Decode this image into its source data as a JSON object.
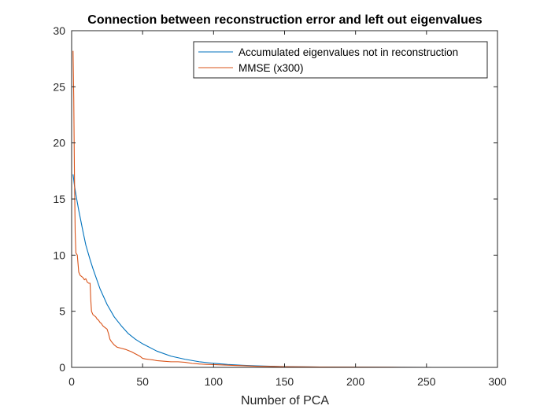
{
  "chart_data": {
    "type": "line",
    "title": "Connection between reconstruction error and left out eigenvalues",
    "xlabel": "Number of PCA",
    "ylabel": "",
    "xlim": [
      0,
      300
    ],
    "ylim": [
      0,
      30
    ],
    "xticks": [
      0,
      50,
      100,
      150,
      200,
      250,
      300
    ],
    "yticks": [
      0,
      5,
      10,
      15,
      20,
      25,
      30
    ],
    "grid": false,
    "box": true,
    "legend_position": "top-right",
    "series": [
      {
        "name": "Accumulated eigenvalues not in reconstruction",
        "color": "#0072BD",
        "points": [
          [
            1,
            17.2
          ],
          [
            2,
            16.2
          ],
          [
            3,
            15.4
          ],
          [
            5,
            14.0
          ],
          [
            8,
            12.1
          ],
          [
            10,
            10.9
          ],
          [
            13,
            9.6
          ],
          [
            15,
            8.8
          ],
          [
            20,
            7.0
          ],
          [
            25,
            5.6
          ],
          [
            30,
            4.5
          ],
          [
            35,
            3.7
          ],
          [
            40,
            3.0
          ],
          [
            45,
            2.5
          ],
          [
            50,
            2.1
          ],
          [
            60,
            1.45
          ],
          [
            70,
            1.0
          ],
          [
            80,
            0.72
          ],
          [
            90,
            0.5
          ],
          [
            100,
            0.36
          ],
          [
            110,
            0.26
          ],
          [
            120,
            0.19
          ],
          [
            130,
            0.14
          ],
          [
            140,
            0.1
          ],
          [
            150,
            0.07
          ],
          [
            160,
            0.05
          ],
          [
            175,
            0.03
          ],
          [
            200,
            0.01
          ],
          [
            225,
            0.004
          ],
          [
            256,
            0.0
          ]
        ]
      },
      {
        "name": "MMSE (x300)",
        "color": "#D95319",
        "points": [
          [
            1,
            28.2
          ],
          [
            1.5,
            24.0
          ],
          [
            2,
            17.0
          ],
          [
            2.5,
            12.0
          ],
          [
            3,
            10.2
          ],
          [
            4,
            10.0
          ],
          [
            5,
            8.5
          ],
          [
            6,
            8.2
          ],
          [
            7,
            8.1
          ],
          [
            8,
            8.0
          ],
          [
            9,
            7.8
          ],
          [
            10,
            7.9
          ],
          [
            11,
            7.6
          ],
          [
            12,
            7.5
          ],
          [
            13,
            7.5
          ],
          [
            13.5,
            6.0
          ],
          [
            14,
            5.0
          ],
          [
            15,
            4.7
          ],
          [
            16,
            4.6
          ],
          [
            17,
            4.5
          ],
          [
            18,
            4.3
          ],
          [
            19,
            4.2
          ],
          [
            20,
            4.0
          ],
          [
            21,
            3.9
          ],
          [
            22,
            3.7
          ],
          [
            23,
            3.6
          ],
          [
            24,
            3.5
          ],
          [
            25,
            3.4
          ],
          [
            26,
            3.0
          ],
          [
            27,
            2.5
          ],
          [
            28,
            2.3
          ],
          [
            30,
            2.0
          ],
          [
            32,
            1.8
          ],
          [
            35,
            1.7
          ],
          [
            38,
            1.6
          ],
          [
            40,
            1.5
          ],
          [
            42,
            1.4
          ],
          [
            45,
            1.2
          ],
          [
            48,
            1.0
          ],
          [
            50,
            0.8
          ],
          [
            52,
            0.75
          ],
          [
            55,
            0.7
          ],
          [
            58,
            0.65
          ],
          [
            60,
            0.6
          ],
          [
            65,
            0.55
          ],
          [
            70,
            0.5
          ],
          [
            75,
            0.5
          ],
          [
            80,
            0.45
          ],
          [
            85,
            0.35
          ],
          [
            90,
            0.3
          ],
          [
            95,
            0.27
          ],
          [
            100,
            0.25
          ],
          [
            105,
            0.22
          ],
          [
            110,
            0.2
          ],
          [
            115,
            0.17
          ],
          [
            120,
            0.15
          ],
          [
            130,
            0.1
          ],
          [
            140,
            0.08
          ],
          [
            150,
            0.06
          ],
          [
            160,
            0.05
          ],
          [
            175,
            0.03
          ],
          [
            200,
            0.02
          ],
          [
            225,
            0.01
          ],
          [
            256,
            0.0
          ]
        ]
      }
    ]
  }
}
